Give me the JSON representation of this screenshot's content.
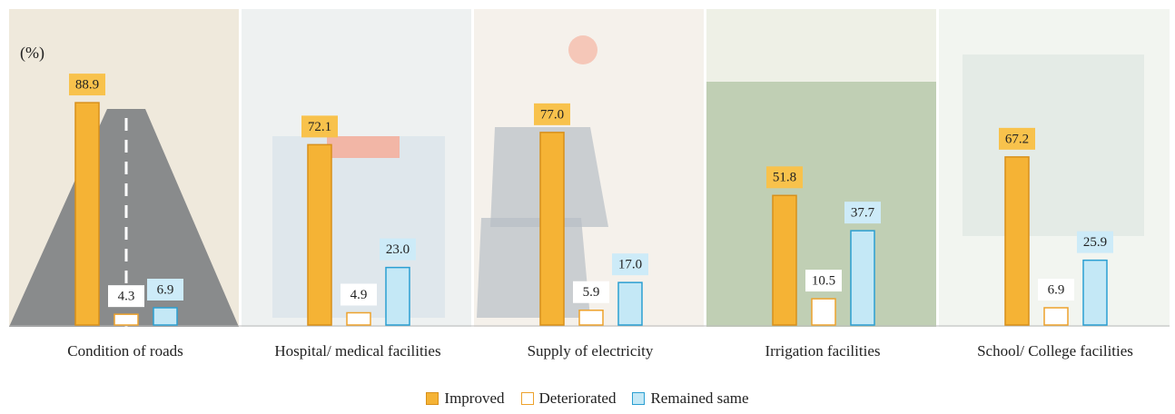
{
  "chart_data": {
    "type": "bar",
    "unit_label": "(%)",
    "categories": [
      "Condition of roads",
      "Hospital/ medical facilities",
      "Supply of electricity",
      "Irrigation facilities",
      "School/ College facilities"
    ],
    "series": [
      {
        "name": "Improved",
        "color": "#f5b335",
        "edge_color": "#d8901a",
        "label_color": "#f8c24c",
        "values": [
          88.9,
          72.1,
          77.0,
          51.8,
          67.2
        ],
        "value_labels": [
          "88.9",
          "72.1",
          "77.0",
          "51.8",
          "67.2"
        ]
      },
      {
        "name": "Deteriorated",
        "color": "#ffffff",
        "edge_color": "#eda22c",
        "label_color": "#ffffff",
        "values": [
          4.3,
          4.9,
          5.9,
          10.5,
          6.9
        ],
        "value_labels": [
          "4.3",
          "4.9",
          "5.9",
          "10.5",
          "6.9"
        ]
      },
      {
        "name": "Remained same",
        "color": "#c4e8f6",
        "edge_color": "#2b9fd2",
        "label_color": "#cdebf8",
        "values": [
          6.9,
          23.0,
          17.0,
          37.7,
          25.9
        ],
        "value_labels": [
          "6.9",
          "23.0",
          "17.0",
          "37.7",
          "25.9"
        ]
      }
    ]
  }
}
